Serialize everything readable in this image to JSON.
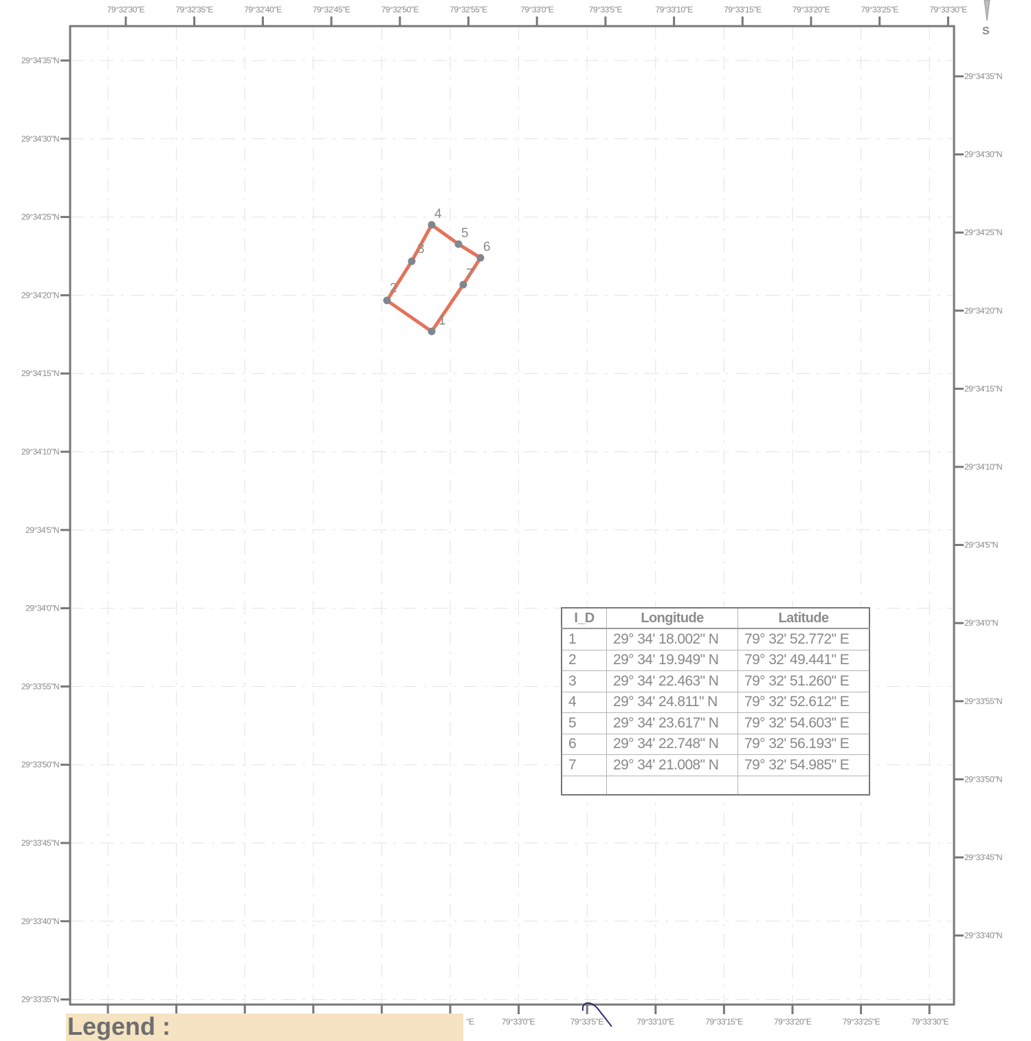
{
  "map": {
    "frame_color": "#777777",
    "boundary_color": "#e5735a",
    "vertex_color": "#7f8790",
    "top_longitude_labels": [
      "79°32'30\"E",
      "79°32'35\"E",
      "79°32'40\"E",
      "79°32'45\"E",
      "79°32'50\"E",
      "79°32'55\"E",
      "79°33'0\"E",
      "79°33'5\"E",
      "79°33'10\"E",
      "79°33'15\"E",
      "79°33'20\"E",
      "79°33'25\"E",
      "79°33'30\"E"
    ],
    "bottom_longitude_labels": [
      "\"E",
      "79°33'0\"E",
      "79°33'5\"E",
      "79°33'10\"E",
      "79°33'15\"E",
      "79°33'20\"E",
      "79°33'25\"E",
      "79°33'30\"E"
    ],
    "left_latitude_labels": [
      "29°34'35\"N",
      "29°34'30\"N",
      "29°34'25\"N",
      "29°34'20\"N",
      "29°34'15\"N",
      "29°34'10\"N",
      "29°34'5\"N",
      "29°34'0\"N",
      "29°33'55\"N",
      "29°33'50\"N",
      "29°33'45\"N",
      "29°33'40\"N",
      "29°33'35\"N"
    ],
    "right_latitude_labels": [
      "29°34'35\"N",
      "29°34'30\"N",
      "29°34'25\"N",
      "29°34'20\"N",
      "29°34'15\"N",
      "29°34'10\"N",
      "29°34'5\"N",
      "29°34'0\"N",
      "29°33'55\"N",
      "29°33'50\"N",
      "29°33'45\"N",
      "29°33'40\"N"
    ],
    "north_arrow_letter": "S",
    "vertex_labels": [
      "1",
      "2",
      "3",
      "4",
      "5",
      "6",
      "7"
    ]
  },
  "coordinates_table": {
    "headers": [
      "I_D",
      "Longitude",
      "Latitude"
    ],
    "rows": [
      {
        "id": "1",
        "longitude": "29° 34' 18.002\" N",
        "latitude": "79° 32' 52.772\" E"
      },
      {
        "id": "2",
        "longitude": "29° 34' 19.949\" N",
        "latitude": "79° 32' 49.441\" E"
      },
      {
        "id": "3",
        "longitude": "29° 34' 22.463\" N",
        "latitude": "79° 32' 51.260\" E"
      },
      {
        "id": "4",
        "longitude": "29° 34' 24.811\" N",
        "latitude": "79° 32' 52.612\" E"
      },
      {
        "id": "5",
        "longitude": "29° 34' 23.617\" N",
        "latitude": "79° 32' 54.603\" E"
      },
      {
        "id": "6",
        "longitude": "29° 34' 22.748\" N",
        "latitude": "79° 32' 56.193\" E"
      },
      {
        "id": "7",
        "longitude": "29° 34' 21.008\" N",
        "latitude": "79° 32' 54.985\" E"
      }
    ]
  },
  "legend": {
    "title": "Legend :"
  }
}
